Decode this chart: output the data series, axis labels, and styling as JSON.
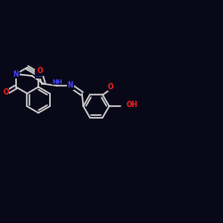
{
  "background_color": "#080818",
  "bond_color": "#d8d8d8",
  "N_color": "#4444ff",
  "O_color": "#ff2222",
  "figsize": [
    2.5,
    2.5
  ],
  "dpi": 100,
  "xlim": [
    0,
    250
  ],
  "ylim": [
    0,
    250
  ]
}
